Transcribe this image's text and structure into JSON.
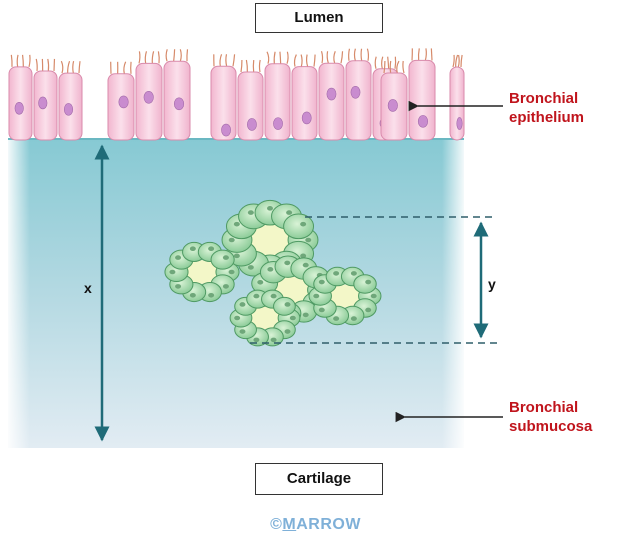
{
  "labels": {
    "lumen": "Lumen",
    "cartilage": "Cartilage",
    "bronchial_epithelium": [
      "Bronchial",
      "epithelium"
    ],
    "bronchial_submucosa": [
      "Bronchial",
      "submucosa"
    ],
    "x": "x",
    "y": "y"
  },
  "watermark": "MARROW",
  "copyright": {
    "symbol": "©",
    "underlined": "M",
    "rest": "ARROW"
  },
  "colors": {
    "label_red": "#c0141c",
    "cell_pink": "#f6c9dc",
    "nucleus": "#c98ccf",
    "submucosa_top": "#8ccdd6",
    "submucosa_bottom": "#dfeaf2",
    "gland_green": "#9fd6a8",
    "arrow_teal": "#1f6b78"
  }
}
